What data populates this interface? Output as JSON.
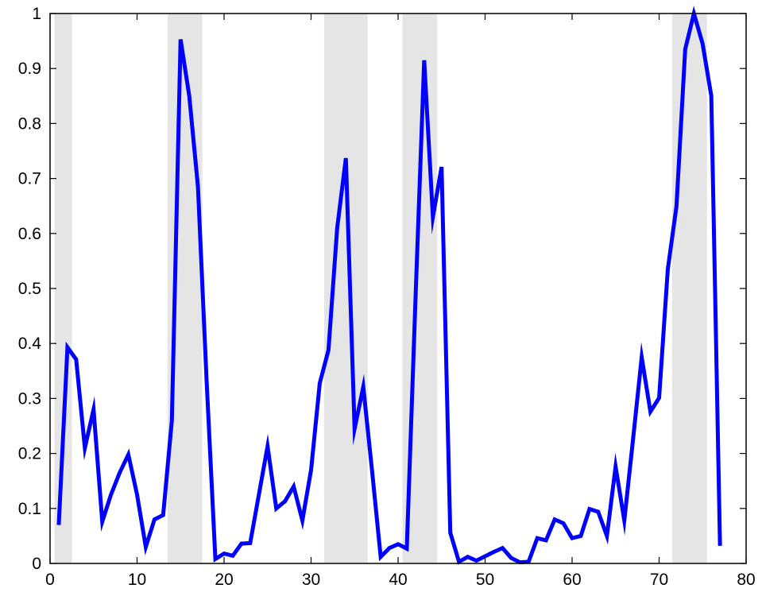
{
  "chart_data": {
    "type": "line",
    "title": "",
    "xlabel": "",
    "ylabel": "",
    "xlim": [
      0,
      80
    ],
    "ylim": [
      0,
      1
    ],
    "xticks": [
      0,
      10,
      20,
      30,
      40,
      50,
      60,
      70,
      80
    ],
    "yticks": [
      0,
      0.1,
      0.2,
      0.3,
      0.4,
      0.5,
      0.6,
      0.7,
      0.8,
      0.9,
      1
    ],
    "xtick_labels": [
      "0",
      "10",
      "20",
      "30",
      "40",
      "50",
      "60",
      "70",
      "80"
    ],
    "ytick_labels": [
      "0",
      "0.1",
      "0.2",
      "0.3",
      "0.4",
      "0.5",
      "0.6",
      "0.7",
      "0.8",
      "0.9",
      "1"
    ],
    "grid": false,
    "line_color": "#0000ff",
    "band_color": "#e5e5e5",
    "shaded_regions": [
      [
        0.5,
        2.5
      ],
      [
        13.5,
        17.5
      ],
      [
        31.5,
        36.5
      ],
      [
        40.5,
        44.5
      ],
      [
        71.5,
        75.5
      ]
    ],
    "series": [
      {
        "x": [
          1,
          2,
          3,
          4,
          5,
          6,
          7,
          8,
          9,
          10,
          11,
          12,
          13,
          14,
          15,
          16,
          17,
          18,
          19,
          20,
          21,
          22,
          23,
          24,
          25,
          26,
          27,
          28,
          29,
          30,
          31,
          32,
          33,
          34,
          35,
          36,
          37,
          38,
          39,
          40,
          41,
          42,
          43,
          44,
          45,
          46,
          47,
          48,
          49,
          50,
          51,
          52,
          53,
          54,
          55,
          56,
          57,
          58,
          59,
          60,
          61,
          62,
          63,
          64,
          65,
          66,
          67,
          68,
          69,
          70,
          71,
          72,
          73,
          74,
          75,
          76,
          77
        ],
        "values": [
          0.07,
          0.393,
          0.371,
          0.21,
          0.28,
          0.076,
          0.125,
          0.165,
          0.198,
          0.125,
          0.03,
          0.08,
          0.088,
          0.26,
          0.953,
          0.85,
          0.685,
          0.33,
          0.008,
          0.018,
          0.014,
          0.036,
          0.037,
          0.125,
          0.213,
          0.1,
          0.113,
          0.14,
          0.078,
          0.17,
          0.328,
          0.388,
          0.61,
          0.737,
          0.245,
          0.321,
          0.17,
          0.012,
          0.028,
          0.035,
          0.027,
          0.48,
          0.915,
          0.63,
          0.721,
          0.056,
          0.003,
          0.012,
          0.005,
          0.013,
          0.021,
          0.028,
          0.01,
          0.002,
          0.003,
          0.046,
          0.042,
          0.08,
          0.073,
          0.046,
          0.05,
          0.099,
          0.094,
          0.05,
          0.176,
          0.078,
          0.225,
          0.375,
          0.276,
          0.301,
          0.535,
          0.65,
          0.935,
          1.0,
          0.945,
          0.85,
          0.032
        ]
      }
    ]
  }
}
